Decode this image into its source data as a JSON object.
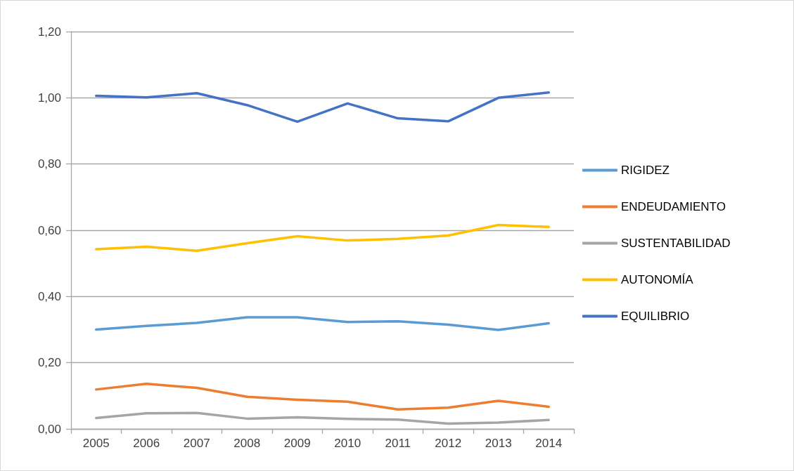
{
  "chart_data": {
    "type": "line",
    "categories": [
      "2005",
      "2006",
      "2007",
      "2008",
      "2009",
      "2010",
      "2011",
      "2012",
      "2013",
      "2014"
    ],
    "series": [
      {
        "name": "RIGIDEZ",
        "color": "#5b9bd5",
        "values": [
          0.3,
          0.311,
          0.32,
          0.337,
          0.337,
          0.323,
          0.325,
          0.315,
          0.299,
          0.319
        ]
      },
      {
        "name": "ENDEUDAMIENTO",
        "color": "#ed7d31",
        "values": [
          0.119,
          0.136,
          0.124,
          0.097,
          0.088,
          0.082,
          0.059,
          0.064,
          0.085,
          0.067
        ]
      },
      {
        "name": "SUSTENTABILIDAD",
        "color": "#a5a5a5",
        "values": [
          0.033,
          0.047,
          0.048,
          0.031,
          0.035,
          0.03,
          0.028,
          0.016,
          0.019,
          0.027
        ]
      },
      {
        "name": "AUTONOMÍA",
        "color": "#ffc000",
        "values": [
          0.543,
          0.55,
          0.538,
          0.561,
          0.582,
          0.569,
          0.574,
          0.584,
          0.616,
          0.61
        ]
      },
      {
        "name": "EQUILIBRIO",
        "color": "#4472c4",
        "values": [
          1.006,
          1.001,
          1.014,
          0.978,
          0.928,
          0.983,
          0.938,
          0.929,
          1.0,
          1.016
        ]
      }
    ],
    "ylim": [
      0,
      1.2
    ],
    "yticks": [
      {
        "value": 0,
        "label": "0,00"
      },
      {
        "value": 0.2,
        "label": "0,20"
      },
      {
        "value": 0.4,
        "label": "0,40"
      },
      {
        "value": 0.6,
        "label": "0,60"
      },
      {
        "value": 0.8,
        "label": "0,80"
      },
      {
        "value": 1.0,
        "label": "1,00"
      },
      {
        "value": 1.2,
        "label": "1,20"
      }
    ],
    "grid": "y",
    "legend": "right",
    "marker": "none",
    "line_style": "solid"
  }
}
